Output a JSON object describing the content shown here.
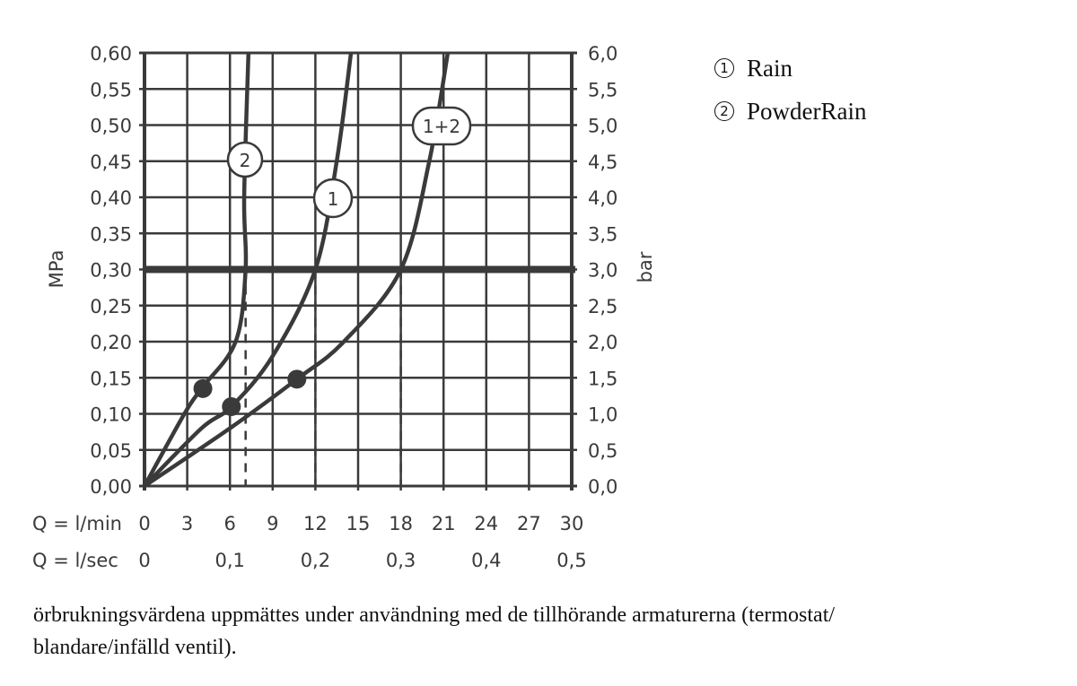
{
  "chart_data": {
    "type": "line",
    "title": "",
    "xlabel": "Q = l/min",
    "xlabel_secondary": "Q = l/sec",
    "ylabel": "MPa",
    "ylabel_right": "bar",
    "xlim": [
      0,
      30
    ],
    "ylim": [
      0,
      0.6
    ],
    "grid": true,
    "x_ticks": [
      "0",
      "3",
      "6",
      "9",
      "12",
      "15",
      "18",
      "21",
      "24",
      "27",
      "30"
    ],
    "x_ticks_secondary": [
      "0",
      "0,1",
      "0,2",
      "0,3",
      "0,4",
      "0,5"
    ],
    "y_ticks_left": [
      "0,00",
      "0,05",
      "0,10",
      "0,15",
      "0,20",
      "0,25",
      "0,30",
      "0,35",
      "0,40",
      "0,45",
      "0,50",
      "0,55",
      "0,60"
    ],
    "y_ticks_right": [
      "0,0",
      "0,5",
      "1,0",
      "1,5",
      "2,0",
      "2,5",
      "3,0",
      "3,5",
      "4,0",
      "4,5",
      "5,0",
      "5,5",
      "6,0"
    ],
    "reference_line": {
      "y": 0.3,
      "label": "3,0 bar"
    },
    "series": [
      {
        "name": "2",
        "label": "PowderRain",
        "x": [
          0,
          2.8,
          4,
          6.4,
          7.1,
          7.0,
          7.3
        ],
        "y": [
          0,
          0.1,
          0.135,
          0.2,
          0.3,
          0.4,
          0.6
        ],
        "marker": {
          "x": 4.1,
          "y": 0.135
        },
        "flow_at_3bar": 7.1
      },
      {
        "name": "1",
        "label": "Rain",
        "x": [
          0,
          4,
          6.1,
          9,
          12,
          13.5,
          14.5
        ],
        "y": [
          0,
          0.08,
          0.11,
          0.18,
          0.3,
          0.45,
          0.6
        ],
        "marker": {
          "x": 6.1,
          "y": 0.11
        },
        "flow_at_3bar": 12
      },
      {
        "name": "1+2",
        "label": "Rain + PowderRain",
        "x": [
          0,
          6,
          10.7,
          14,
          18,
          20,
          21.3
        ],
        "y": [
          0,
          0.08,
          0.148,
          0.2,
          0.3,
          0.45,
          0.6
        ],
        "marker": {
          "x": 10.7,
          "y": 0.148
        },
        "flow_at_3bar": 18
      }
    ],
    "legend": [
      {
        "key": "1",
        "label": "Rain"
      },
      {
        "key": "2",
        "label": "PowderRain"
      }
    ]
  },
  "legend": {
    "items": [
      {
        "num": "1",
        "label": "Rain"
      },
      {
        "num": "2",
        "label": "PowderRain"
      }
    ]
  },
  "axes": {
    "y_left_title": "MPa",
    "y_right_title": "bar",
    "x_title_min": "Q = l/min",
    "x_title_sec": "Q = l/sec"
  },
  "curve_labels": {
    "c2": "2",
    "c1": "1",
    "c12": "1+2"
  },
  "caption": {
    "line1": "örbrukningsvärdena uppmättes under användning med de tillhörande armaturerna (termostat/",
    "line2": "blandare/infälld ventil)."
  }
}
